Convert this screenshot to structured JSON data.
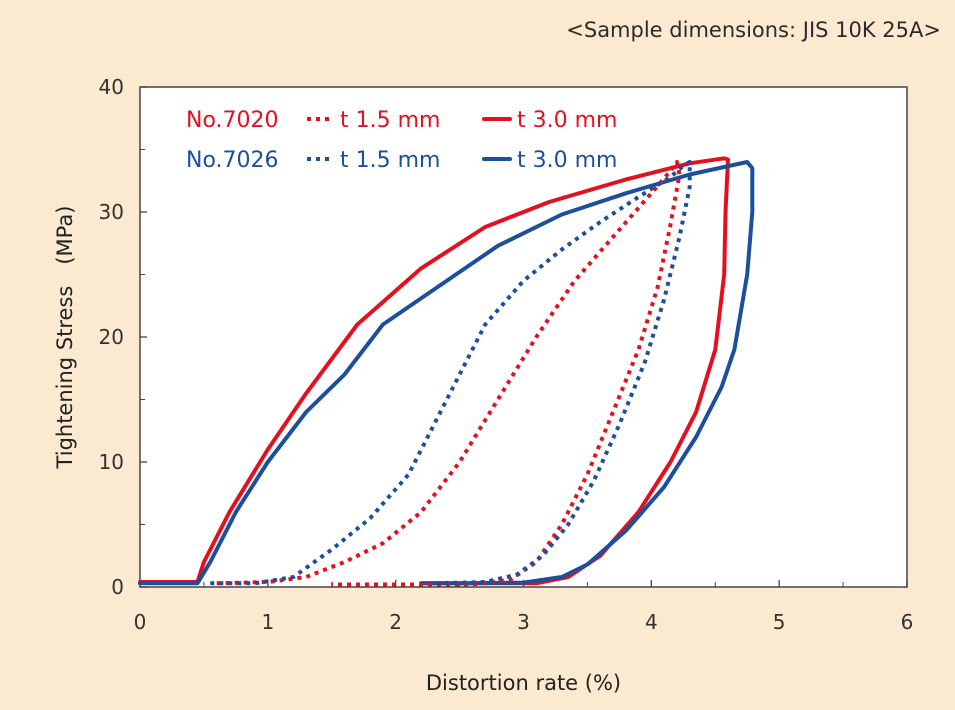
{
  "caption": "<Sample dimensions: JIS 10K 25A>",
  "colors": {
    "red": "#e3101f",
    "blue": "#1c4f9c",
    "background": "#fbe9d0",
    "plot_bg": "#ffffff"
  },
  "chart_data": {
    "type": "line",
    "title": "",
    "xlabel": "Distortion rate (%)",
    "ylabel": "Tightening Stress　(MPa)",
    "xlim": [
      0,
      6
    ],
    "ylim": [
      0,
      40
    ],
    "xticks": [
      "0",
      "1",
      "2",
      "3",
      "4",
      "5",
      "6"
    ],
    "yticks": [
      "0",
      "10",
      "20",
      "30",
      "40"
    ],
    "legend": {
      "rows": [
        {
          "product": "No.7020",
          "color": "#e3101f",
          "dotted_label": "t 1.5 mm",
          "solid_label": "t 3.0 mm"
        },
        {
          "product": "No.7026",
          "color": "#1c4f9c",
          "dotted_label": "t 1.5 mm",
          "solid_label": "t 3.0 mm"
        }
      ]
    },
    "series": [
      {
        "product": "No.7020",
        "thickness": "t 3.0 mm",
        "color": "#e3101f",
        "style": "solid",
        "points": [
          [
            0,
            0.4
          ],
          [
            0.45,
            0.4
          ],
          [
            0.5,
            2
          ],
          [
            0.7,
            6
          ],
          [
            1,
            11
          ],
          [
            1.3,
            15.5
          ],
          [
            1.7,
            21
          ],
          [
            2.2,
            25.5
          ],
          [
            2.7,
            28.8
          ],
          [
            3.2,
            30.8
          ],
          [
            3.8,
            32.6
          ],
          [
            4.3,
            33.9
          ],
          [
            4.57,
            34.3
          ],
          [
            4.6,
            34.2
          ],
          [
            4.58,
            30
          ],
          [
            4.57,
            25
          ],
          [
            4.5,
            19
          ],
          [
            4.35,
            14
          ],
          [
            4.15,
            10
          ],
          [
            3.9,
            6
          ],
          [
            3.6,
            2.5
          ],
          [
            3.35,
            0.8
          ],
          [
            3.1,
            0.3
          ],
          [
            2.7,
            0.3
          ],
          [
            2.2,
            0.3
          ]
        ]
      },
      {
        "product": "No.7026",
        "thickness": "t 3.0 mm",
        "color": "#1c4f9c",
        "style": "solid",
        "points": [
          [
            0,
            0.3
          ],
          [
            0.45,
            0.3
          ],
          [
            0.55,
            2
          ],
          [
            0.75,
            6
          ],
          [
            1,
            10
          ],
          [
            1.3,
            14
          ],
          [
            1.6,
            17
          ],
          [
            1.9,
            21
          ],
          [
            2.3,
            23.8
          ],
          [
            2.8,
            27.3
          ],
          [
            3.3,
            29.8
          ],
          [
            3.8,
            31.5
          ],
          [
            4.3,
            33
          ],
          [
            4.75,
            34
          ],
          [
            4.79,
            33.5
          ],
          [
            4.79,
            30
          ],
          [
            4.75,
            25
          ],
          [
            4.65,
            19
          ],
          [
            4.55,
            16
          ],
          [
            4.35,
            12
          ],
          [
            4.1,
            8
          ],
          [
            3.8,
            4.5
          ],
          [
            3.5,
            1.8
          ],
          [
            3.3,
            0.8
          ],
          [
            3,
            0.35
          ],
          [
            2.6,
            0.3
          ],
          [
            2.2,
            0.3
          ]
        ]
      },
      {
        "product": "No.7020",
        "thickness": "t 1.5 mm",
        "color": "#e3101f",
        "style": "dotted",
        "points": [
          [
            0.6,
            0.3
          ],
          [
            1,
            0.4
          ],
          [
            1.3,
            0.8
          ],
          [
            1.6,
            2
          ],
          [
            1.9,
            3.5
          ],
          [
            2.2,
            6
          ],
          [
            2.5,
            10
          ],
          [
            2.8,
            15
          ],
          [
            3.1,
            20
          ],
          [
            3.4,
            24.5
          ],
          [
            3.7,
            28
          ],
          [
            4,
            31.5
          ],
          [
            4.15,
            33.3
          ],
          [
            4.2,
            34
          ],
          [
            4.22,
            33
          ],
          [
            4.15,
            29
          ],
          [
            4.05,
            24
          ],
          [
            3.9,
            19
          ],
          [
            3.7,
            14
          ],
          [
            3.5,
            9
          ],
          [
            3.3,
            5
          ],
          [
            3.1,
            2
          ],
          [
            2.9,
            0.6
          ],
          [
            2.6,
            0.2
          ],
          [
            2,
            0.2
          ],
          [
            1.5,
            0.2
          ]
        ]
      },
      {
        "product": "No.7026",
        "thickness": "t 1.5 mm",
        "color": "#1c4f9c",
        "style": "dotted",
        "points": [
          [
            0.55,
            0.3
          ],
          [
            0.9,
            0.3
          ],
          [
            1.2,
            0.8
          ],
          [
            1.5,
            3
          ],
          [
            1.8,
            5.5
          ],
          [
            2.1,
            9
          ],
          [
            2.4,
            15
          ],
          [
            2.7,
            21
          ],
          [
            3,
            24.5
          ],
          [
            3.3,
            27
          ],
          [
            3.6,
            29.2
          ],
          [
            3.9,
            31.2
          ],
          [
            4.15,
            32.8
          ],
          [
            4.25,
            33.7
          ],
          [
            4.3,
            34
          ],
          [
            4.3,
            32
          ],
          [
            4.22,
            28
          ],
          [
            4.1,
            23
          ],
          [
            3.95,
            18
          ],
          [
            3.75,
            13
          ],
          [
            3.55,
            8.5
          ],
          [
            3.35,
            5
          ],
          [
            3.15,
            2.5
          ],
          [
            2.95,
            1
          ],
          [
            2.7,
            0.4
          ],
          [
            2.3,
            0.3
          ]
        ]
      }
    ]
  }
}
